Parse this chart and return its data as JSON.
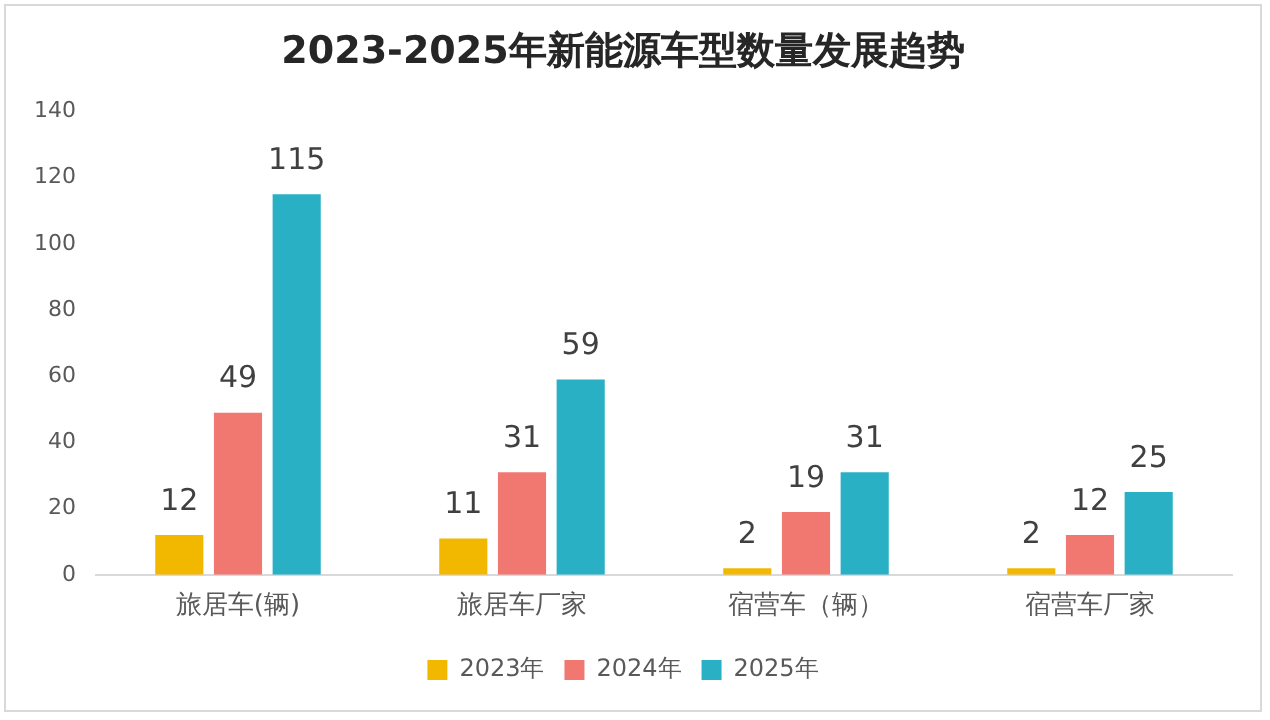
{
  "chart_data": {
    "type": "bar",
    "title": "2023-2025年新能源车型数量发展趋势",
    "categories": [
      "旅居车(辆)",
      "旅居车厂家",
      "宿营车（辆）",
      "宿营车厂家"
    ],
    "series": [
      {
        "name": "2023年",
        "color": "#f2b800",
        "values": [
          12,
          11,
          2,
          2
        ]
      },
      {
        "name": "2024年",
        "color": "#f07870",
        "values": [
          49,
          31,
          19,
          12
        ]
      },
      {
        "name": "2025年",
        "color": "#2ab0c5",
        "values": [
          115,
          59,
          31,
          25
        ]
      }
    ],
    "ylim": [
      0,
      140
    ],
    "yticks": [
      0,
      20,
      40,
      60,
      80,
      100,
      120,
      140
    ],
    "grid": false,
    "legend": "bottom",
    "data_labels": true
  }
}
